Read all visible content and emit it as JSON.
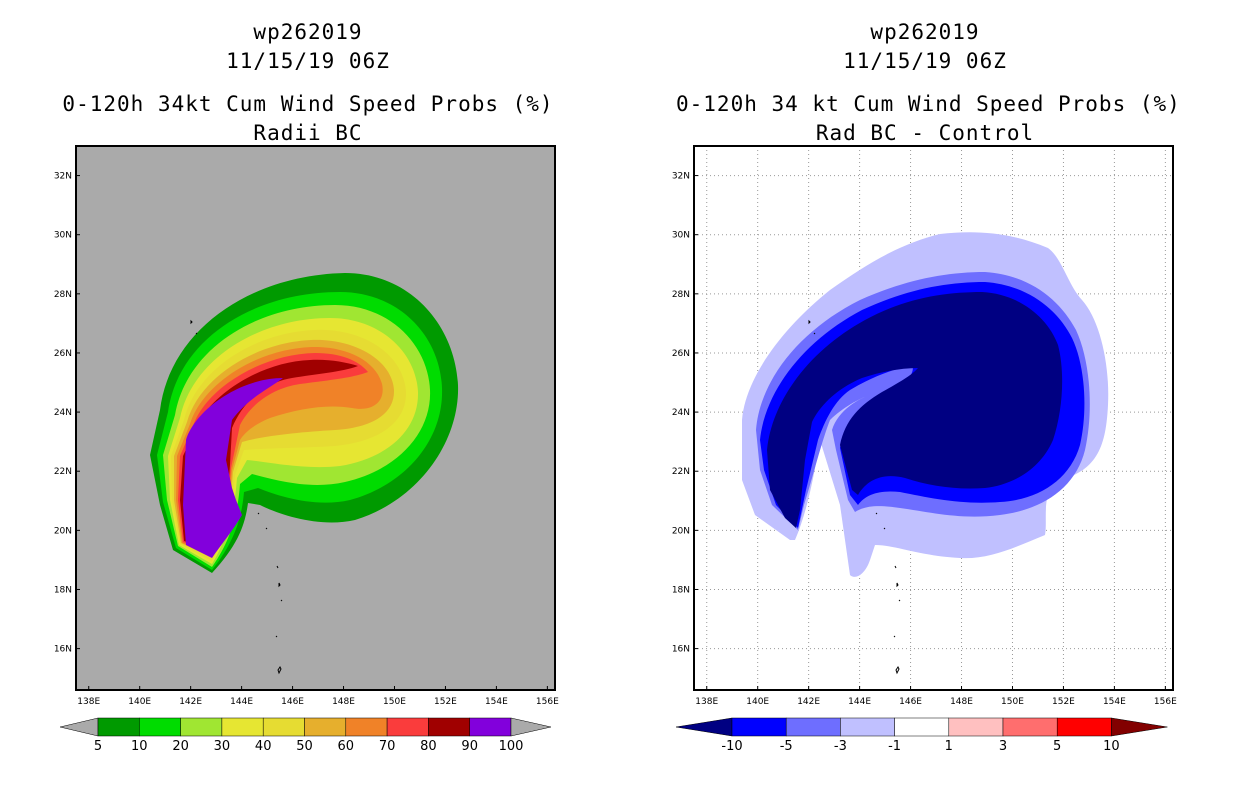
{
  "chart_data": [
    {
      "type": "filled-contour-map",
      "title_lines": [
        "wp262019",
        "11/15/19 06Z"
      ],
      "subtitle_lines": [
        "0-120h 34kt Cum Wind Speed Probs (%)",
        "Radii BC"
      ],
      "x_ticks": [
        "138E",
        "140E",
        "142E",
        "144E",
        "146E",
        "148E",
        "150E",
        "152E",
        "154E",
        "156E"
      ],
      "y_ticks": [
        "16N",
        "18N",
        "20N",
        "22N",
        "24N",
        "26N",
        "28N",
        "30N",
        "32N"
      ],
      "xlim": [
        137.5,
        156.3
      ],
      "ylim": [
        14.6,
        33.0
      ],
      "colorbar": {
        "labels": [
          "5",
          "10",
          "20",
          "30",
          "40",
          "50",
          "60",
          "70",
          "80",
          "90",
          "100"
        ],
        "colors": [
          "#009a00",
          "#00dc00",
          "#a0e632",
          "#e6e632",
          "#e6dc32",
          "#e6af2d",
          "#f08228",
          "#fa3c3c",
          "#a00000",
          "#8200dc"
        ]
      },
      "legend_position": "bottom"
    },
    {
      "type": "filled-contour-map",
      "title_lines": [
        "wp262019",
        "11/15/19 06Z"
      ],
      "subtitle_lines": [
        "0-120h 34 kt Cum Wind Speed Probs (%)",
        "Rad BC - Control"
      ],
      "x_ticks": [
        "138E",
        "140E",
        "142E",
        "144E",
        "146E",
        "148E",
        "150E",
        "152E",
        "154E",
        "156E"
      ],
      "y_ticks": [
        "16N",
        "18N",
        "20N",
        "22N",
        "24N",
        "26N",
        "28N",
        "30N",
        "32N"
      ],
      "xlim": [
        137.5,
        156.3
      ],
      "ylim": [
        14.6,
        33.0
      ],
      "grid": true,
      "colorbar": {
        "labels": [
          "-10",
          "-5",
          "-3",
          "-1",
          "1",
          "3",
          "5",
          "10"
        ],
        "colors": [
          "#000082",
          "#0000ff",
          "#6e6eff",
          "#c0c0ff",
          "#ffffff",
          "#ffc0c0",
          "#ff6e6e",
          "#ff0000",
          "#820000"
        ]
      },
      "legend_position": "bottom"
    }
  ]
}
